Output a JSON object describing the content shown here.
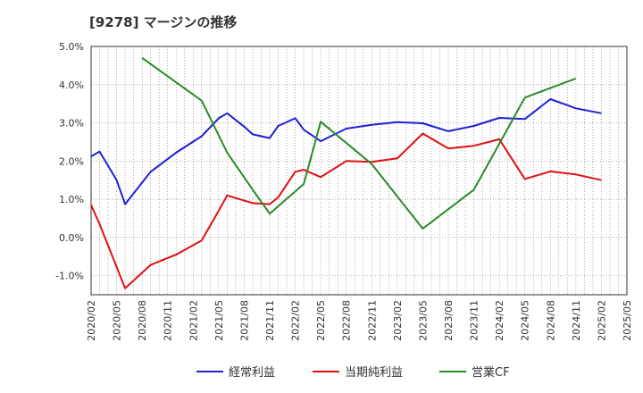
{
  "chart_data": {
    "type": "line",
    "title": "[9278]  マージンの推移",
    "y_ticks": [
      "5.0%",
      "4.0%",
      "3.0%",
      "2.0%",
      "1.0%",
      "0.0%",
      "-1.0%"
    ],
    "ylim": [
      -1.5,
      5.0
    ],
    "x_ticks": [
      "2020/02",
      "2020/05",
      "2020/08",
      "2020/11",
      "2021/02",
      "2021/05",
      "2021/08",
      "2021/11",
      "2022/02",
      "2022/05",
      "2022/08",
      "2022/11",
      "2023/02",
      "2023/05",
      "2023/08",
      "2023/11",
      "2024/02",
      "2024/05",
      "2024/08",
      "2024/11",
      "2025/02",
      "2025/05"
    ],
    "xlim": [
      "2020/02",
      "2025/05"
    ],
    "grid": true,
    "legend_position": "bottom",
    "series": [
      {
        "name": "経常利益",
        "color": "#1f1fd6",
        "points": [
          [
            "2020/02",
            2.12
          ],
          [
            "2020/03",
            2.25
          ],
          [
            "2020/05",
            1.5
          ],
          [
            "2020/06",
            0.87
          ],
          [
            "2020/09",
            1.72
          ],
          [
            "2020/12",
            2.22
          ],
          [
            "2021/03",
            2.65
          ],
          [
            "2021/05",
            3.12
          ],
          [
            "2021/06",
            3.25
          ],
          [
            "2021/08",
            2.9
          ],
          [
            "2021/09",
            2.7
          ],
          [
            "2021/11",
            2.6
          ],
          [
            "2021/12",
            2.92
          ],
          [
            "2022/02",
            3.12
          ],
          [
            "2022/03",
            2.82
          ],
          [
            "2022/05",
            2.52
          ],
          [
            "2022/08",
            2.85
          ],
          [
            "2022/11",
            2.95
          ],
          [
            "2023/02",
            3.02
          ],
          [
            "2023/05",
            2.99
          ],
          [
            "2023/08",
            2.78
          ],
          [
            "2023/11",
            2.92
          ],
          [
            "2024/02",
            3.13
          ],
          [
            "2024/05",
            3.1
          ],
          [
            "2024/08",
            3.62
          ],
          [
            "2024/11",
            3.38
          ],
          [
            "2025/02",
            3.25
          ]
        ]
      },
      {
        "name": "当期純利益",
        "color": "#e01010",
        "points": [
          [
            "2020/02",
            0.85
          ],
          [
            "2020/03",
            0.35
          ],
          [
            "2020/06",
            -1.33
          ],
          [
            "2020/09",
            -0.72
          ],
          [
            "2020/12",
            -0.45
          ],
          [
            "2021/03",
            -0.08
          ],
          [
            "2021/05",
            0.7
          ],
          [
            "2021/06",
            1.1
          ],
          [
            "2021/09",
            0.9
          ],
          [
            "2021/11",
            0.87
          ],
          [
            "2021/12",
            1.05
          ],
          [
            "2022/02",
            1.72
          ],
          [
            "2022/03",
            1.77
          ],
          [
            "2022/05",
            1.58
          ],
          [
            "2022/08",
            2.0
          ],
          [
            "2022/11",
            1.98
          ],
          [
            "2023/02",
            2.07
          ],
          [
            "2023/05",
            2.72
          ],
          [
            "2023/08",
            2.33
          ],
          [
            "2023/11",
            2.4
          ],
          [
            "2024/02",
            2.57
          ],
          [
            "2024/05",
            1.53
          ],
          [
            "2024/08",
            1.73
          ],
          [
            "2024/11",
            1.65
          ],
          [
            "2025/02",
            1.5
          ]
        ]
      },
      {
        "name": "営業CF",
        "color": "#2a8a2a",
        "points": [
          [
            "2020/08",
            4.7
          ],
          [
            "2021/03",
            3.58
          ],
          [
            "2021/06",
            2.22
          ],
          [
            "2021/09",
            1.25
          ],
          [
            "2021/11",
            0.62
          ],
          [
            "2022/03",
            1.4
          ],
          [
            "2022/05",
            3.03
          ],
          [
            "2022/11",
            1.92
          ],
          [
            "2023/05",
            0.23
          ],
          [
            "2023/11",
            1.25
          ],
          [
            "2024/05",
            3.66
          ],
          [
            "2024/11",
            4.16
          ]
        ]
      }
    ]
  }
}
